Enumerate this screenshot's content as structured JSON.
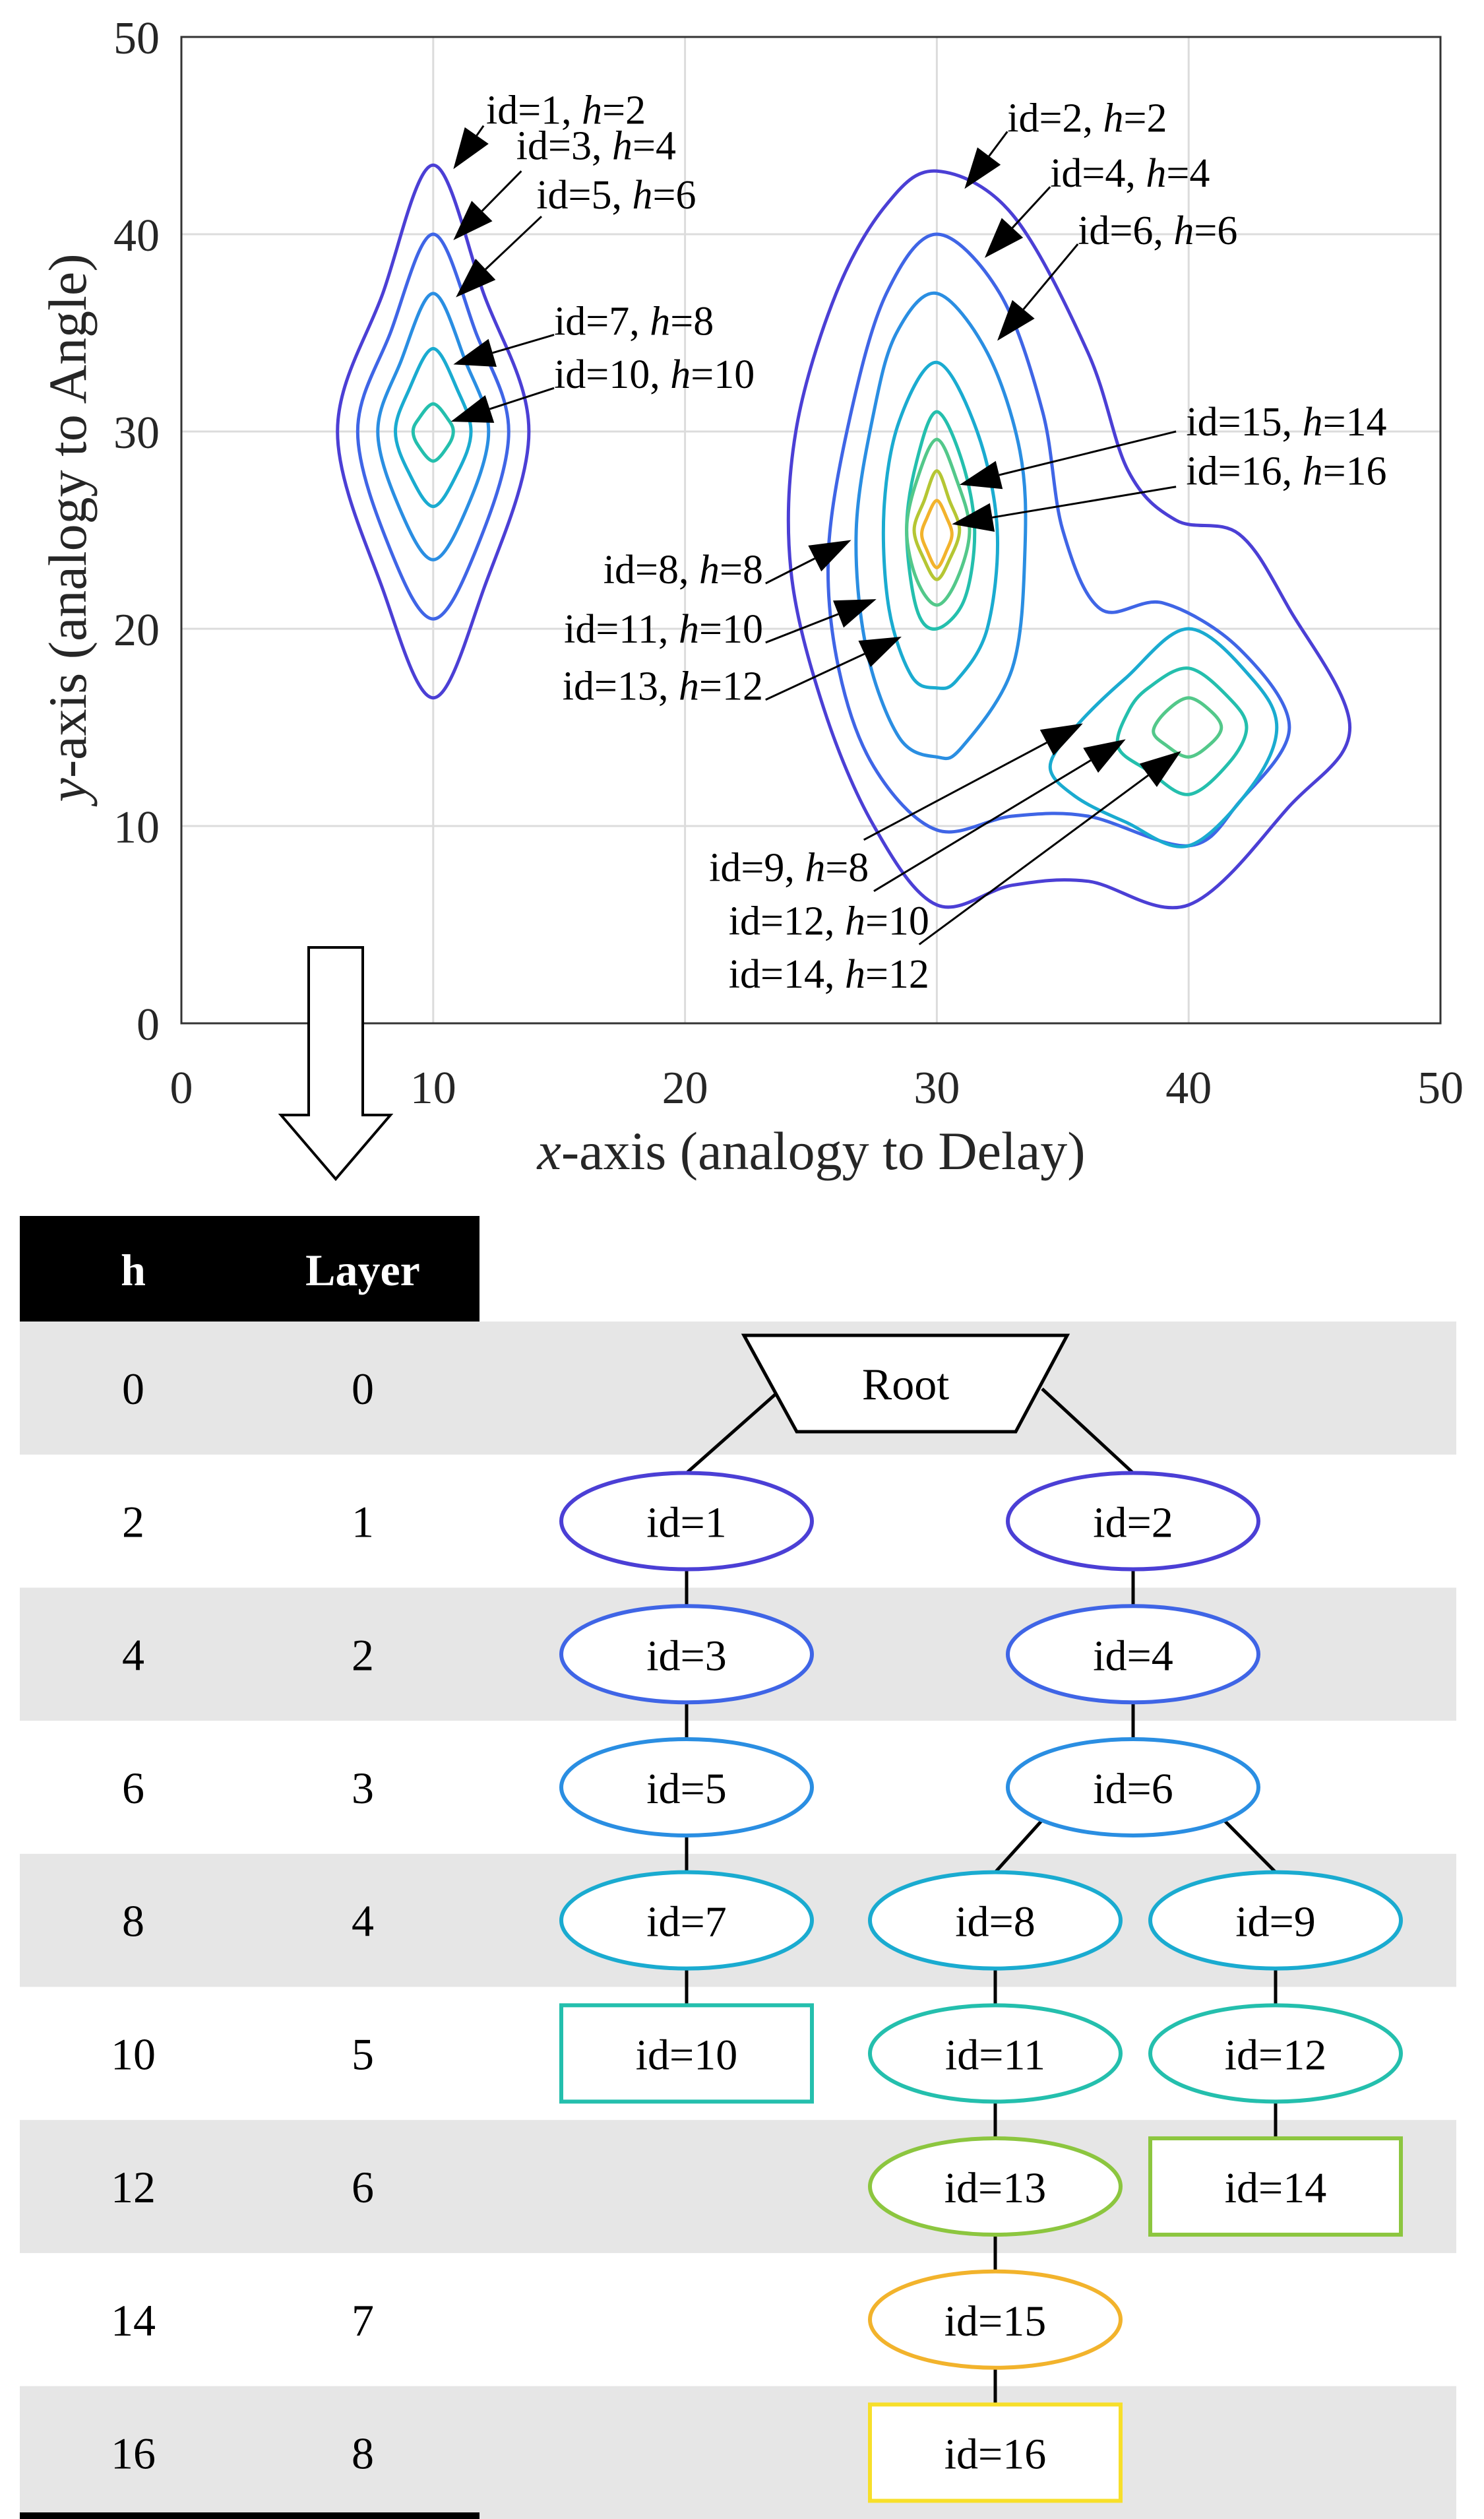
{
  "chart_data": {
    "type": "contour",
    "title": "",
    "xlabel": {
      "var": "x",
      "text": "-axis (analogy to Delay)"
    },
    "ylabel": {
      "var": "y",
      "text": "-axis (analogy to Angle)"
    },
    "xlim": [
      0,
      50
    ],
    "ylim": [
      0,
      50
    ],
    "xticks": [
      "0",
      "10",
      "20",
      "30",
      "40",
      "50"
    ],
    "yticks": [
      "0",
      "10",
      "20",
      "30",
      "40",
      "50"
    ],
    "grid": true,
    "level_colors": {
      "2": "#4b3fd5",
      "4": "#3f65e6",
      "6": "#2a8ee2",
      "8": "#1aabd0",
      "10": "#24bfad",
      "12": "#53c88a",
      "14": "#b5c633",
      "16": "#f2b32c"
    },
    "contours": [
      {
        "id": 1,
        "h": 2,
        "points": [
          [
            10,
            43.5
          ],
          [
            12,
            37
          ],
          [
            13.8,
            30
          ],
          [
            12,
            22
          ],
          [
            10,
            16.5
          ],
          [
            8,
            22
          ],
          [
            6.2,
            30
          ],
          [
            8,
            37
          ]
        ]
      },
      {
        "id": 3,
        "h": 4,
        "points": [
          [
            10,
            40
          ],
          [
            11.7,
            35
          ],
          [
            13,
            30
          ],
          [
            11.7,
            24
          ],
          [
            10,
            20.5
          ],
          [
            8.3,
            24
          ],
          [
            7,
            30
          ],
          [
            8.3,
            35
          ]
        ]
      },
      {
        "id": 5,
        "h": 6,
        "points": [
          [
            10,
            37
          ],
          [
            11.3,
            33.5
          ],
          [
            12.2,
            30
          ],
          [
            11.3,
            26
          ],
          [
            10,
            23.5
          ],
          [
            8.7,
            26
          ],
          [
            7.8,
            30
          ],
          [
            8.7,
            33.5
          ]
        ]
      },
      {
        "id": 7,
        "h": 8,
        "points": [
          [
            10,
            34.2
          ],
          [
            11,
            32
          ],
          [
            11.5,
            30
          ],
          [
            11,
            28
          ],
          [
            10,
            26.2
          ],
          [
            9,
            28
          ],
          [
            8.5,
            30
          ],
          [
            9,
            32
          ]
        ]
      },
      {
        "id": 10,
        "h": 10,
        "points": [
          [
            10,
            31.4
          ],
          [
            10.6,
            30.6
          ],
          [
            10.8,
            30
          ],
          [
            10.6,
            29.3
          ],
          [
            10,
            28.5
          ],
          [
            9.4,
            29.3
          ],
          [
            9.2,
            30
          ],
          [
            9.4,
            30.6
          ]
        ]
      },
      {
        "id": 2,
        "h": 2,
        "points": [
          [
            30,
            43.2
          ],
          [
            33,
            41
          ],
          [
            36,
            34
          ],
          [
            37.6,
            28
          ],
          [
            39.5,
            25.5
          ],
          [
            42,
            24.8
          ],
          [
            44,
            21
          ],
          [
            46.4,
            15
          ],
          [
            44,
            11
          ],
          [
            40,
            6
          ],
          [
            36,
            7.2
          ],
          [
            33,
            7
          ],
          [
            30,
            6
          ],
          [
            27.5,
            10
          ],
          [
            25.5,
            16
          ],
          [
            24.2,
            23
          ],
          [
            24.4,
            30
          ],
          [
            26,
            37
          ],
          [
            28,
            41.5
          ]
        ]
      },
      {
        "id": 4,
        "h": 4,
        "points": [
          [
            30,
            40
          ],
          [
            32.5,
            37
          ],
          [
            34.2,
            31
          ],
          [
            35,
            25
          ],
          [
            36.5,
            21
          ],
          [
            39,
            21.3
          ],
          [
            42,
            19
          ],
          [
            44,
            15
          ],
          [
            42,
            11.2
          ],
          [
            40,
            9
          ],
          [
            36,
            10.5
          ],
          [
            33,
            10.5
          ],
          [
            30,
            9.8
          ],
          [
            27.5,
            13
          ],
          [
            26.1,
            18
          ],
          [
            25.7,
            24
          ],
          [
            26.6,
            31
          ],
          [
            28,
            37
          ]
        ]
      },
      {
        "id": 6,
        "h": 6,
        "points": [
          [
            30,
            37
          ],
          [
            32,
            34
          ],
          [
            33.3,
            29
          ],
          [
            33.5,
            24
          ],
          [
            33,
            18
          ],
          [
            31,
            14
          ],
          [
            30,
            13.5
          ],
          [
            28.5,
            14.5
          ],
          [
            27.2,
            19
          ],
          [
            26.8,
            25
          ],
          [
            27.5,
            31
          ],
          [
            28.4,
            35
          ]
        ]
      },
      {
        "id": 8,
        "h": 8,
        "points": [
          [
            30,
            33.5
          ],
          [
            31.6,
            30
          ],
          [
            32.4,
            25
          ],
          [
            32,
            20
          ],
          [
            30.8,
            17.4
          ],
          [
            30,
            17
          ],
          [
            29,
            17.6
          ],
          [
            28.1,
            21
          ],
          [
            27.9,
            26
          ],
          [
            28.5,
            30.5
          ]
        ]
      },
      {
        "id": 11,
        "h": 10,
        "points": [
          [
            30,
            31
          ],
          [
            31,
            28.5
          ],
          [
            31.5,
            25
          ],
          [
            31.1,
            21.5
          ],
          [
            30,
            20
          ],
          [
            29.2,
            21
          ],
          [
            28.8,
            25
          ],
          [
            29.2,
            28.5
          ]
        ]
      },
      {
        "id": 13,
        "h": 12,
        "points": [
          [
            30,
            29.6
          ],
          [
            30.8,
            27.5
          ],
          [
            31.3,
            25
          ],
          [
            30.8,
            22.5
          ],
          [
            30,
            21.2
          ],
          [
            29.2,
            22.5
          ],
          [
            28.8,
            25
          ],
          [
            29.2,
            27.5
          ]
        ]
      },
      {
        "id": 15,
        "h": 14,
        "points": [
          [
            30,
            28
          ],
          [
            30.5,
            26.5
          ],
          [
            30.9,
            25
          ],
          [
            30.5,
            23.5
          ],
          [
            30,
            22.5
          ],
          [
            29.5,
            23.5
          ],
          [
            29.1,
            25
          ],
          [
            29.5,
            26.5
          ]
        ]
      },
      {
        "id": 16,
        "h": 16,
        "points": [
          [
            30,
            26.5
          ],
          [
            30.4,
            25.6
          ],
          [
            30.6,
            24.8
          ],
          [
            30.4,
            24
          ],
          [
            30,
            23.1
          ],
          [
            29.6,
            24
          ],
          [
            29.4,
            24.8
          ],
          [
            29.6,
            25.6
          ]
        ]
      },
      {
        "id": 9,
        "h": 8,
        "points": [
          [
            40,
            20
          ],
          [
            42.5,
            17.5
          ],
          [
            43.5,
            15
          ],
          [
            42.5,
            12
          ],
          [
            40,
            9
          ],
          [
            37.5,
            10.2
          ],
          [
            35.5,
            11.5
          ],
          [
            34.5,
            13
          ],
          [
            35.5,
            15
          ],
          [
            37.5,
            17.5
          ]
        ]
      },
      {
        "id": 12,
        "h": 10,
        "points": [
          [
            40,
            18
          ],
          [
            41.6,
            16.5
          ],
          [
            42.3,
            15
          ],
          [
            41.6,
            13.2
          ],
          [
            40,
            11.6
          ],
          [
            38.4,
            12.8
          ],
          [
            37.2,
            14
          ],
          [
            37.6,
            15.8
          ],
          [
            38.4,
            17
          ]
        ]
      },
      {
        "id": 14,
        "h": 12,
        "points": [
          [
            40,
            16.5
          ],
          [
            40.9,
            15.8
          ],
          [
            41.3,
            15
          ],
          [
            40.9,
            14.2
          ],
          [
            40,
            13.5
          ],
          [
            39.1,
            14.1
          ],
          [
            38.6,
            14.8
          ],
          [
            39.1,
            15.8
          ]
        ]
      }
    ],
    "annotations": [
      {
        "id": "1",
        "h": "2",
        "at": [
          10.8,
          43.3
        ],
        "tail": [
          12,
          45.5
        ],
        "text_at": [
          12.1,
          45.6
        ],
        "anchor": "start"
      },
      {
        "id": "3",
        "h": "4",
        "at": [
          10.8,
          39.7
        ],
        "tail": [
          13.5,
          43.2
        ],
        "text_at": [
          13.3,
          43.8
        ],
        "anchor": "start"
      },
      {
        "id": "5",
        "h": "6",
        "at": [
          10.9,
          36.8
        ],
        "tail": [
          14.3,
          40.9
        ],
        "text_at": [
          14.1,
          41.3
        ],
        "anchor": "start"
      },
      {
        "id": "7",
        "h": "8",
        "at": [
          10.8,
          33.4
        ],
        "tail": [
          14.8,
          34.9
        ],
        "text_at": [
          14.8,
          34.9
        ],
        "anchor": "start"
      },
      {
        "id": "10",
        "h": "10",
        "at": [
          10.7,
          30.5
        ],
        "tail": [
          14.8,
          32.2
        ],
        "text_at": [
          14.8,
          32.2
        ],
        "anchor": "start"
      },
      {
        "id": "2",
        "h": "2",
        "at": [
          31.1,
          42.3
        ],
        "tail": [
          32.8,
          45.2
        ],
        "text_at": [
          32.8,
          45.2
        ],
        "anchor": "start"
      },
      {
        "id": "4",
        "h": "4",
        "at": [
          31.9,
          38.8
        ],
        "tail": [
          34.5,
          42.4
        ],
        "text_at": [
          34.5,
          42.4
        ],
        "anchor": "start"
      },
      {
        "id": "6",
        "h": "6",
        "at": [
          32.4,
          34.6
        ],
        "tail": [
          35.6,
          39.5
        ],
        "text_at": [
          35.6,
          39.5
        ],
        "anchor": "start"
      },
      {
        "id": "15",
        "h": "14",
        "at": [
          30.9,
          27.3
        ],
        "tail": [
          39.5,
          30
        ],
        "text_at": [
          39.9,
          29.8
        ],
        "anchor": "start"
      },
      {
        "id": "16",
        "h": "16",
        "at": [
          30.6,
          25.3
        ],
        "tail": [
          39.5,
          27.2
        ],
        "text_at": [
          39.9,
          27.3
        ],
        "anchor": "start"
      },
      {
        "id": "8",
        "h": "8",
        "at": [
          26.6,
          24.5
        ],
        "tail": [
          23.2,
          22.3
        ],
        "text_at": [
          23.1,
          22.3
        ],
        "anchor": "end"
      },
      {
        "id": "11",
        "h": "10",
        "at": [
          27.6,
          21.5
        ],
        "tail": [
          23.2,
          19.3
        ],
        "text_at": [
          23.1,
          19.3
        ],
        "anchor": "end"
      },
      {
        "id": "13",
        "h": "12",
        "at": [
          28.6,
          19.6
        ],
        "tail": [
          23.2,
          16.4
        ],
        "text_at": [
          23.1,
          16.4
        ],
        "anchor": "end"
      },
      {
        "id": "9",
        "h": "8",
        "at": [
          35.8,
          15.2
        ],
        "tail": [
          27.1,
          9.3
        ],
        "text_at": [
          27.3,
          7.2
        ],
        "anchor": "end"
      },
      {
        "id": "12",
        "h": "10",
        "at": [
          37.5,
          14.4
        ],
        "tail": [
          27.5,
          6.7
        ],
        "text_at": [
          29.7,
          4.5
        ],
        "anchor": "end"
      },
      {
        "id": "14",
        "h": "12",
        "at": [
          39.7,
          13.8
        ],
        "tail": [
          29.3,
          4
        ],
        "text_at": [
          29.7,
          1.8
        ],
        "anchor": "end"
      }
    ]
  },
  "tree": {
    "headers": {
      "h": "h",
      "layer": "Layer"
    },
    "rows": [
      {
        "h": "0",
        "layer": "0"
      },
      {
        "h": "2",
        "layer": "1"
      },
      {
        "h": "4",
        "layer": "2"
      },
      {
        "h": "6",
        "layer": "3"
      },
      {
        "h": "8",
        "layer": "4"
      },
      {
        "h": "10",
        "layer": "5"
      },
      {
        "h": "12",
        "layer": "6"
      },
      {
        "h": "14",
        "layer": "7"
      },
      {
        "h": "16",
        "layer": "8"
      }
    ],
    "root": {
      "label": "Root"
    },
    "nodes": [
      {
        "id": "1",
        "label": "id=1",
        "layer": 1,
        "col": "a",
        "shape": "ellipse",
        "color": "#4b3fd5"
      },
      {
        "id": "2",
        "label": "id=2",
        "layer": 1,
        "col": "b",
        "shape": "ellipse",
        "color": "#4b3fd5"
      },
      {
        "id": "3",
        "label": "id=3",
        "layer": 2,
        "col": "a",
        "shape": "ellipse",
        "color": "#3f65e6"
      },
      {
        "id": "4",
        "label": "id=4",
        "layer": 2,
        "col": "b",
        "shape": "ellipse",
        "color": "#3f65e6"
      },
      {
        "id": "5",
        "label": "id=5",
        "layer": 3,
        "col": "a",
        "shape": "ellipse",
        "color": "#2a8ee2"
      },
      {
        "id": "6",
        "label": "id=6",
        "layer": 3,
        "col": "b",
        "shape": "ellipse",
        "color": "#2a8ee2"
      },
      {
        "id": "7",
        "label": "id=7",
        "layer": 4,
        "col": "a",
        "shape": "ellipse",
        "color": "#1aabd0"
      },
      {
        "id": "8",
        "label": "id=8",
        "layer": 4,
        "col": "c",
        "shape": "ellipse",
        "color": "#1aabd0"
      },
      {
        "id": "9",
        "label": "id=9",
        "layer": 4,
        "col": "d",
        "shape": "ellipse",
        "color": "#1aabd0"
      },
      {
        "id": "10",
        "label": "id=10",
        "layer": 5,
        "col": "a",
        "shape": "rect",
        "color": "#24bfad"
      },
      {
        "id": "11",
        "label": "id=11",
        "layer": 5,
        "col": "c",
        "shape": "ellipse",
        "color": "#24bfad"
      },
      {
        "id": "12",
        "label": "id=12",
        "layer": 5,
        "col": "d",
        "shape": "ellipse",
        "color": "#24bfad"
      },
      {
        "id": "13",
        "label": "id=13",
        "layer": 6,
        "col": "c",
        "shape": "ellipse",
        "color": "#8cc63f"
      },
      {
        "id": "14",
        "label": "id=14",
        "layer": 6,
        "col": "d",
        "shape": "rect",
        "color": "#8cc63f"
      },
      {
        "id": "15",
        "label": "id=15",
        "layer": 7,
        "col": "c",
        "shape": "ellipse",
        "color": "#f2b32c"
      },
      {
        "id": "16",
        "label": "id=16",
        "layer": 8,
        "col": "c",
        "shape": "rect",
        "color": "#f7df2a"
      }
    ],
    "edges": [
      [
        "root",
        "1"
      ],
      [
        "root",
        "2"
      ],
      [
        "1",
        "3"
      ],
      [
        "3",
        "5"
      ],
      [
        "5",
        "7"
      ],
      [
        "7",
        "10"
      ],
      [
        "2",
        "4"
      ],
      [
        "4",
        "6"
      ],
      [
        "6",
        "8"
      ],
      [
        "6",
        "9"
      ],
      [
        "8",
        "11"
      ],
      [
        "11",
        "13"
      ],
      [
        "13",
        "15"
      ],
      [
        "15",
        "16"
      ],
      [
        "9",
        "12"
      ],
      [
        "12",
        "14"
      ]
    ]
  }
}
